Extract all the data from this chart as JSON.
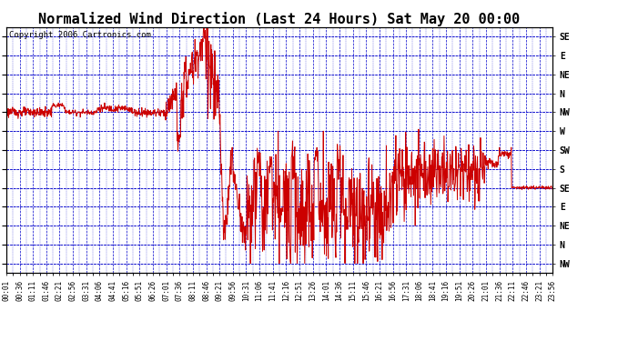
{
  "title": "Normalized Wind Direction (Last 24 Hours) Sat May 20 00:00",
  "copyright": "Copyright 2006 Cartronics.com",
  "bg_color": "#FFFFFF",
  "plot_bg_color": "#FFFFFF",
  "grid_color": "#0000CC",
  "line_color": "#CC0000",
  "y_labels_right": [
    "SE",
    "E",
    "NE",
    "N",
    "NW",
    "W",
    "SW",
    "S",
    "SE",
    "E",
    "NE",
    "N",
    "NW"
  ],
  "y_values": [
    14,
    13,
    12,
    11,
    10,
    9,
    8,
    7,
    6,
    5,
    4,
    3,
    2
  ],
  "y_min": 1.5,
  "y_max": 14.5,
  "x_tick_labels": [
    "00:01",
    "00:36",
    "01:11",
    "01:46",
    "02:21",
    "02:56",
    "03:31",
    "04:06",
    "04:41",
    "05:16",
    "05:51",
    "06:26",
    "07:01",
    "07:36",
    "08:11",
    "08:46",
    "09:21",
    "09:56",
    "10:31",
    "11:06",
    "11:41",
    "12:16",
    "12:51",
    "13:26",
    "14:01",
    "14:36",
    "15:11",
    "15:46",
    "16:21",
    "16:56",
    "17:31",
    "18:06",
    "18:41",
    "19:16",
    "19:51",
    "20:26",
    "21:01",
    "21:36",
    "22:11",
    "22:46",
    "23:21",
    "23:56"
  ],
  "figsize": [
    6.9,
    3.75
  ],
  "dpi": 100,
  "title_fontsize": 11,
  "label_fontsize": 7,
  "tick_fontsize": 5.5,
  "copyright_fontsize": 6.5
}
